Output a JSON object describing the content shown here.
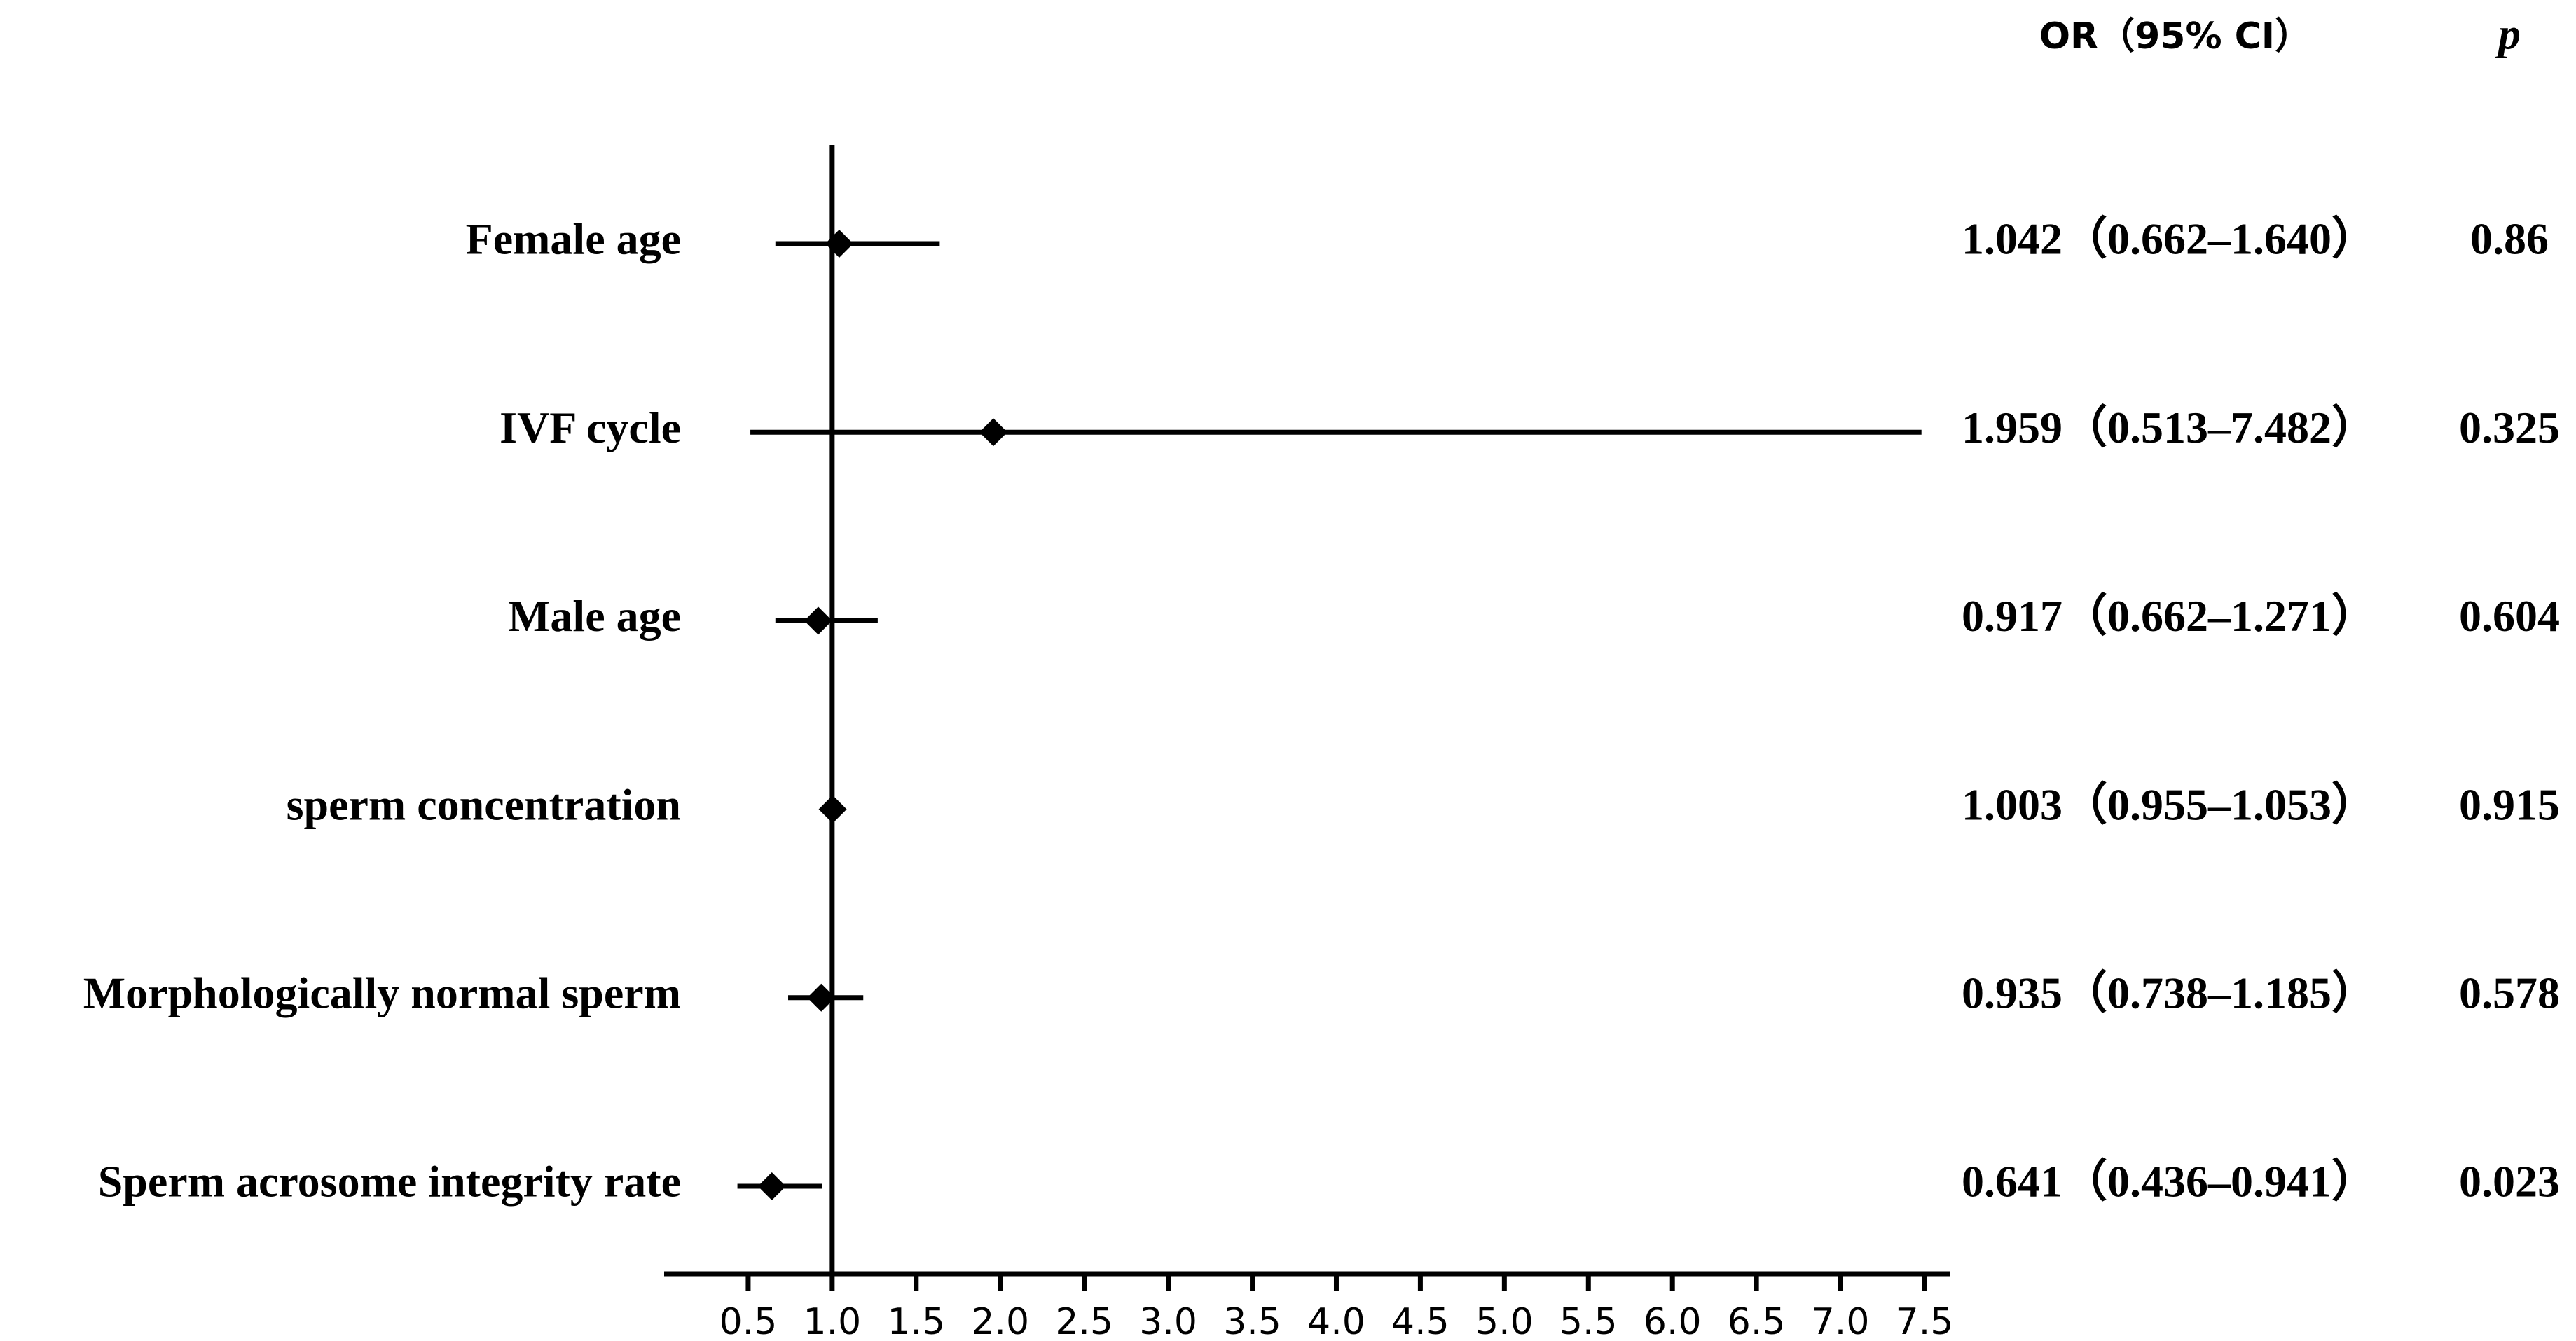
{
  "chart_data": {
    "type": "forest",
    "header_estimate": "OR（95% CI）",
    "header_p": "p",
    "categories": [
      "Female age",
      "IVF cycle",
      "Male age",
      "sperm concentration",
      "Morphologically normal sperm",
      "Sperm acrosome integrity rate"
    ],
    "series": [
      {
        "color": "#000000",
        "values": [
          1.042,
          1.959,
          0.917,
          1.003,
          0.935,
          0.641
        ],
        "lower": [
          0.662,
          0.513,
          0.662,
          0.955,
          0.738,
          0.436
        ],
        "upper": [
          1.64,
          7.482,
          1.271,
          1.053,
          1.185,
          0.941
        ],
        "value_labels": [
          "1.042（0.662–1.640）",
          "1.959（0.513–7.482）",
          "0.917（0.662–1.271）",
          "1.003（0.955–1.053）",
          "0.935（0.738–1.185）",
          "0.641（0.436–0.941）"
        ],
        "p": [
          0.86,
          0.325,
          0.604,
          0.915,
          0.578,
          0.023
        ]
      }
    ],
    "reference_line": 1,
    "xlim": [
      0,
      7.65
    ],
    "xticks": [
      0.5,
      {
        "value": 1,
        "label": "1.0"
      },
      1.5,
      {
        "value": 2,
        "label": "2.0"
      },
      2.5,
      {
        "value": 3,
        "label": "3.0"
      },
      3.5,
      {
        "value": 4,
        "label": "4.0"
      },
      4.5,
      {
        "value": 5,
        "label": "5.0"
      },
      5.5,
      {
        "value": 6,
        "label": "6.0"
      },
      6.5,
      {
        "value": 7,
        "label": "7.0"
      },
      7.5
    ]
  }
}
